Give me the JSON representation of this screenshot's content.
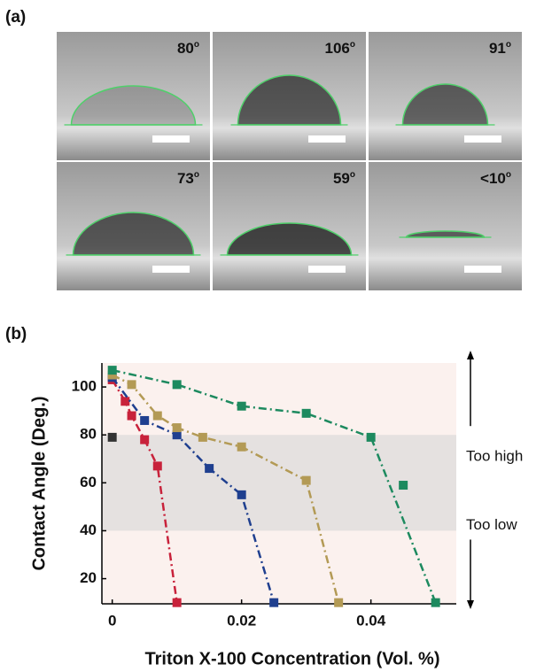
{
  "panel_labels": [
    "(a)",
    "(b)"
  ],
  "photos": [
    {
      "label": "80",
      "sup": "o"
    },
    {
      "label": "106",
      "sup": "o"
    },
    {
      "label": "91",
      "sup": "o"
    },
    {
      "label": "73",
      "sup": "o"
    },
    {
      "label": "59",
      "sup": "o"
    },
    {
      "label": "<10",
      "sup": "o"
    }
  ],
  "chart_data": {
    "type": "line",
    "xlabel": "Triton X-100 Concentration (Vol. %)",
    "ylabel": "Contact Angle (Deg.)",
    "xlim": [
      -0.0016,
      0.0532
    ],
    "ylim": [
      9.5,
      110
    ],
    "xticks": [
      0,
      0.02,
      0.04
    ],
    "yticks": [
      20,
      40,
      60,
      80,
      100
    ],
    "background": "#fbf1ee",
    "bands": [
      {
        "from": 40,
        "to": 80,
        "color": "#e5e1e0"
      }
    ],
    "annotations": [
      "Too high",
      "Too low"
    ],
    "series": [
      {
        "color": "#c8223b",
        "x": [
          0,
          0.002,
          0.003,
          0.005,
          0.007,
          0.01
        ],
        "values": [
          103,
          94,
          88,
          78,
          67,
          10
        ],
        "line": true
      },
      {
        "color": "#1f3f8f",
        "x": [
          0,
          0.005,
          0.01,
          0.015,
          0.02,
          0.025
        ],
        "values": [
          104,
          86,
          80,
          66,
          55,
          10
        ],
        "line": true
      },
      {
        "color": "#b39a55",
        "x": [
          0,
          0.003,
          0.007,
          0.01,
          0.014,
          0.02,
          0.03,
          0.035
        ],
        "values": [
          105,
          101,
          88,
          83,
          79,
          75,
          61,
          10
        ],
        "line": true
      },
      {
        "color": "#1d8a5f",
        "x": [
          0,
          0.01,
          0.02,
          0.03,
          0.04,
          0.05
        ],
        "values": [
          107,
          101,
          92,
          89,
          79,
          10
        ],
        "line": true
      },
      {
        "color": "#1d8a5f",
        "x": [
          0.045
        ],
        "values": [
          59
        ],
        "line": false
      },
      {
        "color": "#333333",
        "x": [
          0
        ],
        "values": [
          79
        ],
        "line": false
      }
    ]
  }
}
